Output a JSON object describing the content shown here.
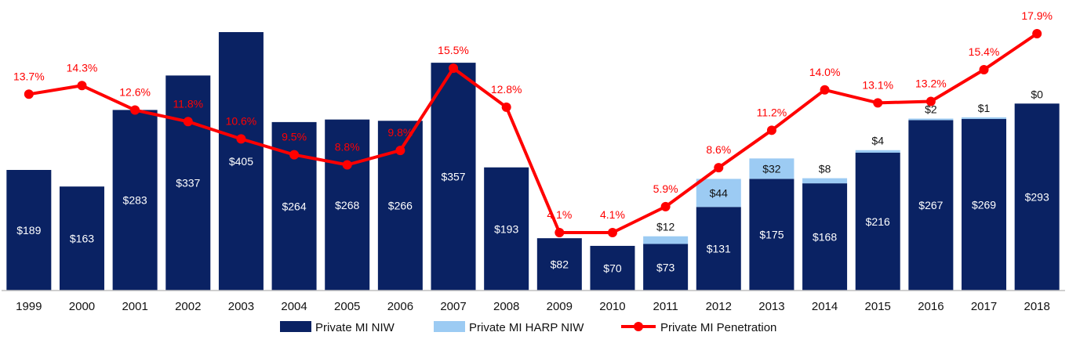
{
  "chart_data": {
    "type": "bar",
    "stacked": true,
    "title": "",
    "xlabel": "",
    "ylabel": "",
    "categories": [
      "1999",
      "2000",
      "2001",
      "2002",
      "2003",
      "2004",
      "2005",
      "2006",
      "2007",
      "2008",
      "2009",
      "2010",
      "2011",
      "2012",
      "2013",
      "2014",
      "2015",
      "2016",
      "2017",
      "2018"
    ],
    "series": [
      {
        "name": "Private MI NIW",
        "type": "bar",
        "values": [
          189,
          163,
          283,
          337,
          405,
          264,
          268,
          266,
          357,
          193,
          82,
          70,
          73,
          131,
          175,
          168,
          216,
          267,
          269,
          293
        ],
        "labels": [
          "$189",
          "$163",
          "$283",
          "$337",
          "$405",
          "$264",
          "$268",
          "$266",
          "$357",
          "$193",
          "$82",
          "$70",
          "$73",
          "$131",
          "$175",
          "$168",
          "$216",
          "$267",
          "$269",
          "$293"
        ]
      },
      {
        "name": "Private MI HARP NIW",
        "type": "bar",
        "values": [
          null,
          null,
          null,
          null,
          null,
          null,
          null,
          null,
          null,
          null,
          null,
          null,
          12,
          44,
          32,
          8,
          4,
          2,
          1,
          0
        ],
        "labels": [
          "",
          "",
          "",
          "",
          "",
          "",
          "",
          "",
          "",
          "",
          "",
          "",
          "$12",
          "$44",
          "$32",
          "$8",
          "$4",
          "$2",
          "$1",
          "$0"
        ]
      },
      {
        "name": "Private MI Penetration",
        "type": "line",
        "values": [
          13.7,
          14.3,
          12.6,
          11.8,
          10.6,
          9.5,
          8.8,
          9.8,
          15.5,
          12.8,
          4.1,
          4.1,
          5.9,
          8.6,
          11.2,
          14.0,
          13.1,
          13.2,
          15.4,
          17.9
        ],
        "labels": [
          "13.7%",
          "14.3%",
          "12.6%",
          "11.8%",
          "10.6%",
          "9.5%",
          "8.8%",
          "9.8%",
          "15.5%",
          "12.8%",
          "4.1%",
          "4.1%",
          "5.9%",
          "8.6%",
          "11.2%",
          "14.0%",
          "13.1%",
          "13.2%",
          "15.4%",
          "17.9%"
        ]
      }
    ],
    "ylim_bars": [
      0,
      405
    ],
    "ylim_line": [
      4.1,
      17.9
    ],
    "legend": [
      "Private MI NIW",
      "Private MI HARP NIW",
      "Private MI Penetration"
    ],
    "legend_position": "bottom",
    "grid": false,
    "colors": {
      "niw": "#0a2263",
      "harp": "#9ccbf3",
      "penetration": "#ff0000",
      "axis": "#bfbfbf"
    }
  }
}
